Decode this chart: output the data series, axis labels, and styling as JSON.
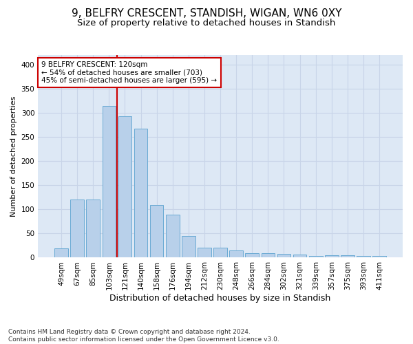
{
  "title": "9, BELFRY CRESCENT, STANDISH, WIGAN, WN6 0XY",
  "subtitle": "Size of property relative to detached houses in Standish",
  "xlabel": "Distribution of detached houses by size in Standish",
  "ylabel": "Number of detached properties",
  "categories": [
    "49sqm",
    "67sqm",
    "85sqm",
    "103sqm",
    "121sqm",
    "140sqm",
    "158sqm",
    "176sqm",
    "194sqm",
    "212sqm",
    "230sqm",
    "248sqm",
    "266sqm",
    "284sqm",
    "302sqm",
    "321sqm",
    "339sqm",
    "357sqm",
    "375sqm",
    "393sqm",
    "411sqm"
  ],
  "values": [
    19,
    120,
    120,
    314,
    293,
    267,
    109,
    89,
    45,
    20,
    20,
    15,
    9,
    9,
    8,
    6,
    3,
    5,
    5,
    3,
    4
  ],
  "bar_color": "#b8d0ea",
  "bar_edge_color": "#6aaad4",
  "vline_color": "#cc0000",
  "annotation_text": "9 BELFRY CRESCENT: 120sqm\n← 54% of detached houses are smaller (703)\n45% of semi-detached houses are larger (595) →",
  "annotation_box_color": "#ffffff",
  "annotation_box_edge_color": "#cc0000",
  "ylim": [
    0,
    420
  ],
  "yticks": [
    0,
    50,
    100,
    150,
    200,
    250,
    300,
    350,
    400
  ],
  "grid_color": "#c8d4e8",
  "bg_color": "#dde8f5",
  "footnote": "Contains HM Land Registry data © Crown copyright and database right 2024.\nContains public sector information licensed under the Open Government Licence v3.0.",
  "title_fontsize": 11,
  "subtitle_fontsize": 9.5,
  "xlabel_fontsize": 9,
  "ylabel_fontsize": 8,
  "tick_fontsize": 7.5,
  "annotation_fontsize": 7.5,
  "footnote_fontsize": 6.5
}
